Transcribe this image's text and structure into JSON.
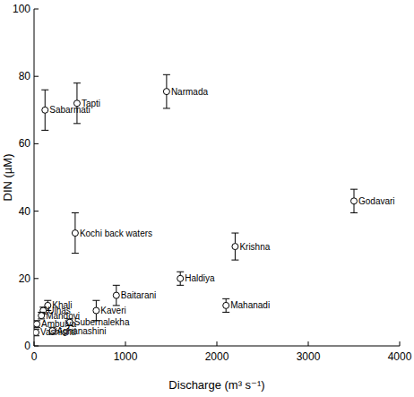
{
  "chart_data": {
    "type": "scatter",
    "x_label": "Discharge (m³ s⁻¹)",
    "y_label": "DIN (µM)",
    "x": [
      120,
      470,
      1450,
      3500,
      450,
      2200,
      1600,
      900,
      2100,
      680,
      150,
      100,
      80,
      390,
      30,
      20,
      200
    ],
    "values": [
      70,
      72,
      75.5,
      43,
      33.5,
      29.5,
      20,
      15,
      12,
      10.5,
      12,
      10.5,
      9,
      7,
      6.5,
      4,
      4.5
    ],
    "errors": [
      6,
      6,
      5,
      3.5,
      6,
      4,
      2,
      3,
      2,
      3,
      1.5,
      1,
      1,
      1,
      1,
      1,
      1
    ],
    "labels": [
      "Sabarmati",
      "Tapti",
      "Narmada",
      "Godavari",
      "Kochi back waters",
      "Krishna",
      "Haldiya",
      "Baitarani",
      "Mahanadi",
      "Kaveri",
      "Khali",
      "Ulhas",
      "Mandovi",
      "Subernalekha",
      "Ambulya",
      "Vashishti",
      "Aghanashini"
    ],
    "color": "#000000",
    "marker": "open-circle",
    "xlim": [
      0,
      4000
    ],
    "xticks": [
      0,
      1000,
      2000,
      3000,
      4000
    ],
    "ylim": [
      0,
      100
    ],
    "yticks": [
      0,
      20,
      40,
      60,
      80,
      100
    ],
    "grid": false
  }
}
